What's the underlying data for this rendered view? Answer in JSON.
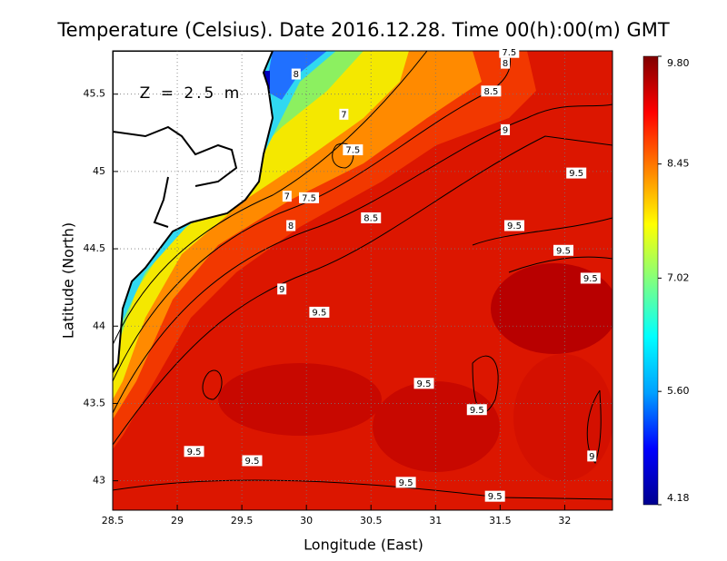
{
  "chart_data": {
    "type": "contour-map",
    "title": "Temperature (Celsius). Date 2016.12.28. Time 00(h):00(m) GMT",
    "annotation": "Z = 2.5 m",
    "x_label": "Longitude (East)",
    "y_label": "Latitude (North)",
    "xlim": [
      28.5,
      32.37
    ],
    "xticks": [
      28.5,
      29,
      29.5,
      30,
      30.5,
      31,
      31.5,
      32
    ],
    "ylim": [
      42.81,
      45.78
    ],
    "yticks": [
      43,
      43.5,
      44,
      44.5,
      45,
      45.5
    ],
    "grid": true,
    "colorbar": {
      "lim": [
        4.18,
        9.8
      ],
      "ticks": [
        4.18,
        {
          "value": 5.6,
          "label": "5.60"
        },
        7.02,
        8.45,
        {
          "value": 9.8,
          "label": "9.80"
        }
      ],
      "colors": [
        "#00008f",
        "#0000ff",
        "#00a0ff",
        "#00ffff",
        "#80ff80",
        "#ffff00",
        "#ff8000",
        "#ff0000",
        "#800000"
      ]
    },
    "contour_labels": [
      {
        "lon": 29.92,
        "lat": 45.63,
        "value": 8
      },
      {
        "lon": 31.57,
        "lat": 45.77,
        "value": 7.5
      },
      {
        "lon": 31.54,
        "lat": 45.7,
        "value": 8
      },
      {
        "lon": 30.29,
        "lat": 45.37,
        "value": 7
      },
      {
        "lon": 31.43,
        "lat": 45.52,
        "value": 8.5
      },
      {
        "lon": 30.36,
        "lat": 45.14,
        "value": 7.5
      },
      {
        "lon": 31.54,
        "lat": 45.27,
        "value": 9
      },
      {
        "lon": 32.09,
        "lat": 44.99,
        "value": 9.5
      },
      {
        "lon": 29.85,
        "lat": 44.84,
        "value": 7
      },
      {
        "lon": 30.02,
        "lat": 44.83,
        "value": 7.5
      },
      {
        "lon": 30.5,
        "lat": 44.7,
        "value": 8.5
      },
      {
        "lon": 29.88,
        "lat": 44.65,
        "value": 8
      },
      {
        "lon": 31.61,
        "lat": 44.65,
        "value": 9.5
      },
      {
        "lon": 31.99,
        "lat": 44.49,
        "value": 9.5
      },
      {
        "lon": 32.2,
        "lat": 44.31,
        "value": 9.5
      },
      {
        "lon": 29.81,
        "lat": 44.24,
        "value": 9
      },
      {
        "lon": 30.1,
        "lat": 44.09,
        "value": 9.5
      },
      {
        "lon": 30.91,
        "lat": 43.63,
        "value": 9.5
      },
      {
        "lon": 31.32,
        "lat": 43.46,
        "value": 9.5
      },
      {
        "lon": 29.13,
        "lat": 43.19,
        "value": 9.5
      },
      {
        "lon": 29.58,
        "lat": 43.13,
        "value": 9.5
      },
      {
        "lon": 32.21,
        "lat": 43.16,
        "value": 9
      },
      {
        "lon": 30.77,
        "lat": 42.99,
        "value": 9.5
      },
      {
        "lon": 31.46,
        "lat": 42.9,
        "value": 9.5
      }
    ]
  }
}
